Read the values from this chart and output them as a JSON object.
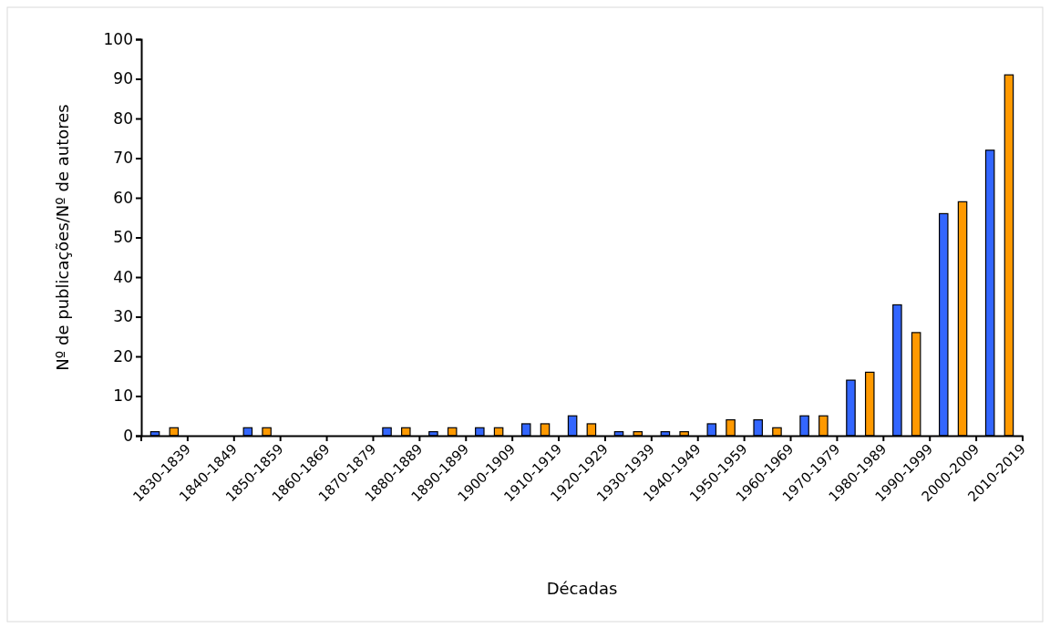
{
  "chart_data": {
    "type": "bar",
    "xlabel": "Décadas",
    "ylabel": "Nº de publicações/Nº de autores",
    "categories": [
      "1830-1839",
      "1840-1849",
      "1850-1859",
      "1860-1869",
      "1870-1879",
      "1880-1889",
      "1890-1899",
      "1900-1909",
      "1910-1919",
      "1920-1929",
      "1930-1939",
      "1940-1949",
      "1950-1959",
      "1960-1969",
      "1970-1979",
      "1980-1989",
      "1990-1999",
      "2000-2009",
      "2010-2019"
    ],
    "series": [
      {
        "color": "#3366ff",
        "values": [
          1,
          null,
          2,
          null,
          null,
          2,
          1,
          2,
          3,
          5,
          1,
          1,
          3,
          4,
          5,
          14,
          33,
          56,
          72
        ]
      },
      {
        "color": "#ff9900",
        "values": [
          2,
          null,
          2,
          null,
          null,
          2,
          2,
          2,
          3,
          3,
          1,
          1,
          4,
          2,
          5,
          16,
          26,
          59,
          91
        ]
      }
    ],
    "ylim": [
      0,
      100
    ],
    "yticks": [
      0,
      10,
      20,
      30,
      40,
      50,
      60,
      70,
      80,
      90,
      100
    ],
    "grid": false
  }
}
